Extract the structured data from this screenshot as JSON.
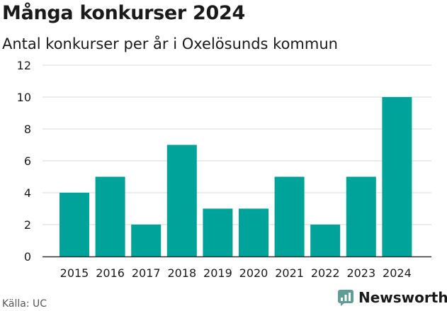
{
  "title": "Många konkurser 2024",
  "subtitle": "Antal konkurser per år i Oxelösunds kommun",
  "source": "Källa: UC",
  "brand": {
    "name": "Newsworthy",
    "icon": "newsworthy-logo-icon"
  },
  "colors": {
    "bar": "#00a39a",
    "grid": "#d9d9d9",
    "axis": "#333333",
    "text": "#1a1a1a",
    "brand": "#5f9e97"
  },
  "chart_data": {
    "type": "bar",
    "title": "Många konkurser 2024",
    "subtitle": "Antal konkurser per år i Oxelösunds kommun",
    "categories": [
      "2015",
      "2016",
      "2017",
      "2018",
      "2019",
      "2020",
      "2021",
      "2022",
      "2023",
      "2024"
    ],
    "values": [
      4,
      5,
      2,
      7,
      3,
      3,
      5,
      2,
      5,
      10
    ],
    "yticks": [
      0,
      2,
      4,
      6,
      8,
      10,
      12
    ],
    "ylim": [
      0,
      12
    ],
    "xlabel": "",
    "ylabel": "",
    "grid": true,
    "legend": "none"
  }
}
